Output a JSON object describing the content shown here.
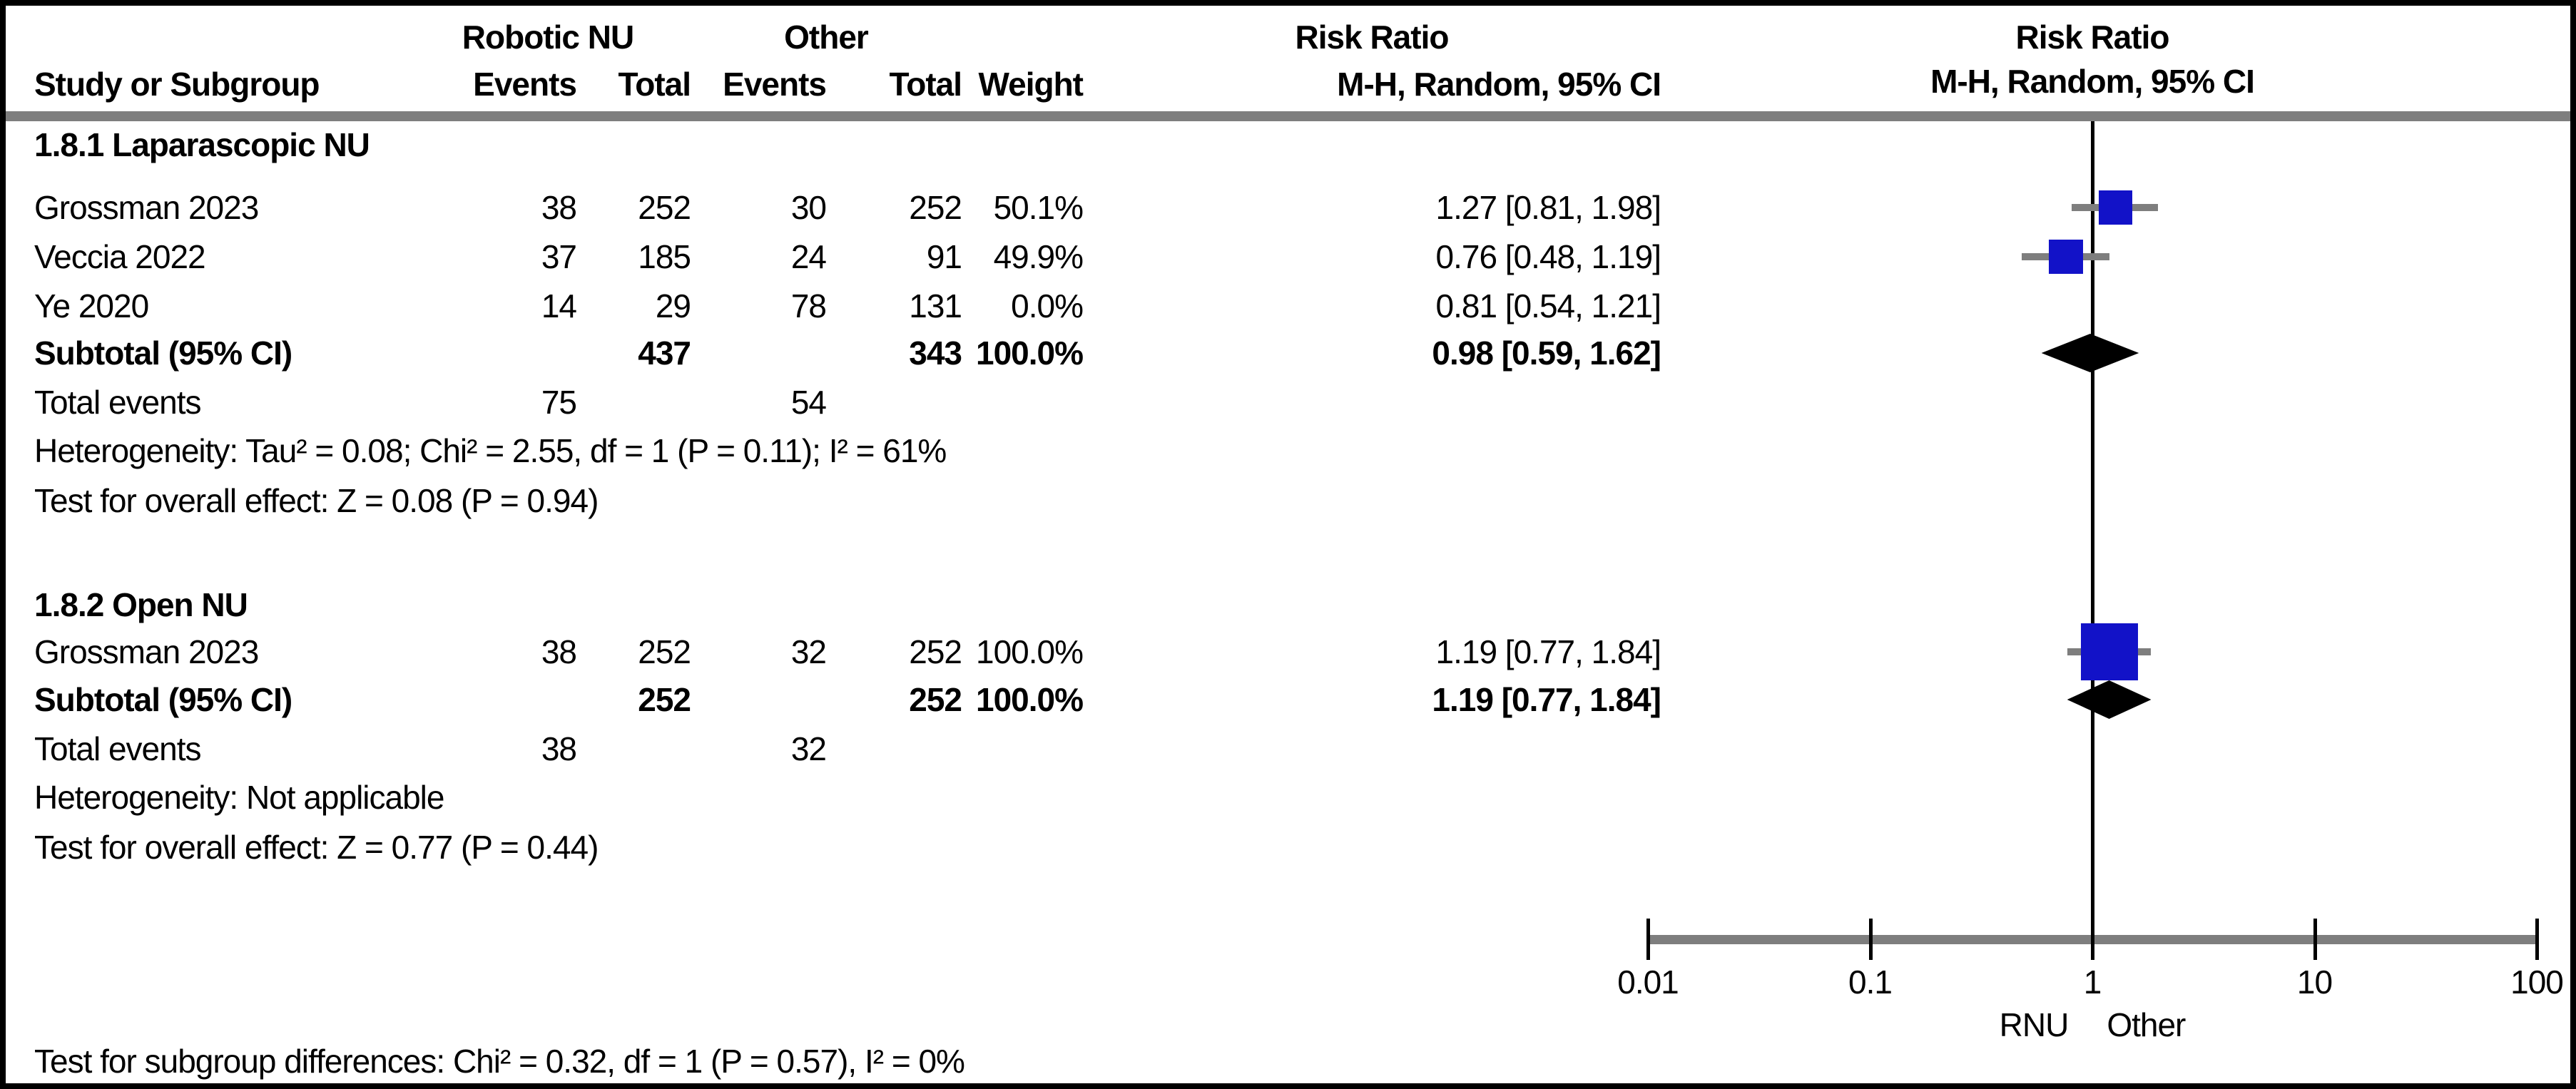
{
  "header": {
    "group1": "Robotic NU",
    "group2": "Other",
    "effect_col_title": "Risk Ratio",
    "study": "Study or Subgroup",
    "events": "Events",
    "total": "Total",
    "weight": "Weight",
    "method": "M-H, Random, 95% CI",
    "plot_title": "Risk Ratio",
    "plot_method": "M-H, Random, 95% CI"
  },
  "labels": {
    "subtotal": "Subtotal (95% CI)",
    "total_events": "Total events"
  },
  "colors": {
    "marker_blue": "#1212C8",
    "diamond_black": "#000000",
    "ci_gray": "#7E7E7E",
    "rule_gray": "#7E7E7E"
  },
  "chart_data": {
    "type": "forest_plot",
    "effect_measure": "Risk Ratio",
    "model": "M-H, Random, 95% CI",
    "axis": {
      "scale": "log",
      "min": 0.01,
      "max": 100,
      "ticks": [
        {
          "label": "0.01",
          "value": 0.01
        },
        {
          "label": "0.1",
          "value": 0.1
        },
        {
          "label": "1",
          "value": 1
        },
        {
          "label": "10",
          "value": 10
        },
        {
          "label": "100",
          "value": 100
        }
      ],
      "left_label": "RNU",
      "right_label": "Other"
    },
    "subgroups": [
      {
        "title": "1.8.1 Laparascopic NU",
        "studies": [
          {
            "name": "Grossman 2023",
            "events1": 38,
            "total1": 252,
            "events2": 30,
            "total2": 252,
            "weight": "50.1%",
            "weight_pct": 50.1,
            "rr": 1.27,
            "lo": 0.81,
            "hi": 1.98,
            "ci_text": "1.27 [0.81, 1.98]",
            "plotted": true
          },
          {
            "name": "Veccia 2022",
            "events1": 37,
            "total1": 185,
            "events2": 24,
            "total2": 91,
            "weight": "49.9%",
            "weight_pct": 49.9,
            "rr": 0.76,
            "lo": 0.48,
            "hi": 1.19,
            "ci_text": "0.76 [0.48, 1.19]",
            "plotted": true
          },
          {
            "name": "Ye 2020",
            "events1": 14,
            "total1": 29,
            "events2": 78,
            "total2": 131,
            "weight": "0.0%",
            "weight_pct": 0.0,
            "rr": 0.81,
            "lo": 0.54,
            "hi": 1.21,
            "ci_text": "0.81 [0.54, 1.21]",
            "plotted": false
          }
        ],
        "subtotal": {
          "total1": 437,
          "total2": 343,
          "weight": "100.0%",
          "rr": 0.98,
          "lo": 0.59,
          "hi": 1.62,
          "ci_text": "0.98 [0.59, 1.62]"
        },
        "total_events": {
          "events1": 75,
          "events2": 54
        },
        "heterogeneity": "Heterogeneity: Tau² = 0.08; Chi² = 2.55, df = 1 (P = 0.11); I² = 61%",
        "overall_effect": "Test for overall effect: Z = 0.08 (P = 0.94)"
      },
      {
        "title": "1.8.2 Open NU",
        "studies": [
          {
            "name": "Grossman 2023",
            "events1": 38,
            "total1": 252,
            "events2": 32,
            "total2": 252,
            "weight": "100.0%",
            "weight_pct": 100.0,
            "rr": 1.19,
            "lo": 0.77,
            "hi": 1.84,
            "ci_text": "1.19 [0.77, 1.84]",
            "plotted": true
          }
        ],
        "subtotal": {
          "total1": 252,
          "total2": 252,
          "weight": "100.0%",
          "rr": 1.19,
          "lo": 0.77,
          "hi": 1.84,
          "ci_text": "1.19 [0.77, 1.84]"
        },
        "total_events": {
          "events1": 38,
          "events2": 32
        },
        "heterogeneity": "Heterogeneity: Not applicable",
        "overall_effect": "Test for overall effect: Z = 0.77 (P = 0.44)"
      }
    ],
    "subgroup_difference_test": "Test for subgroup differences: Chi² = 0.32, df = 1 (P = 0.57), I² = 0%"
  }
}
